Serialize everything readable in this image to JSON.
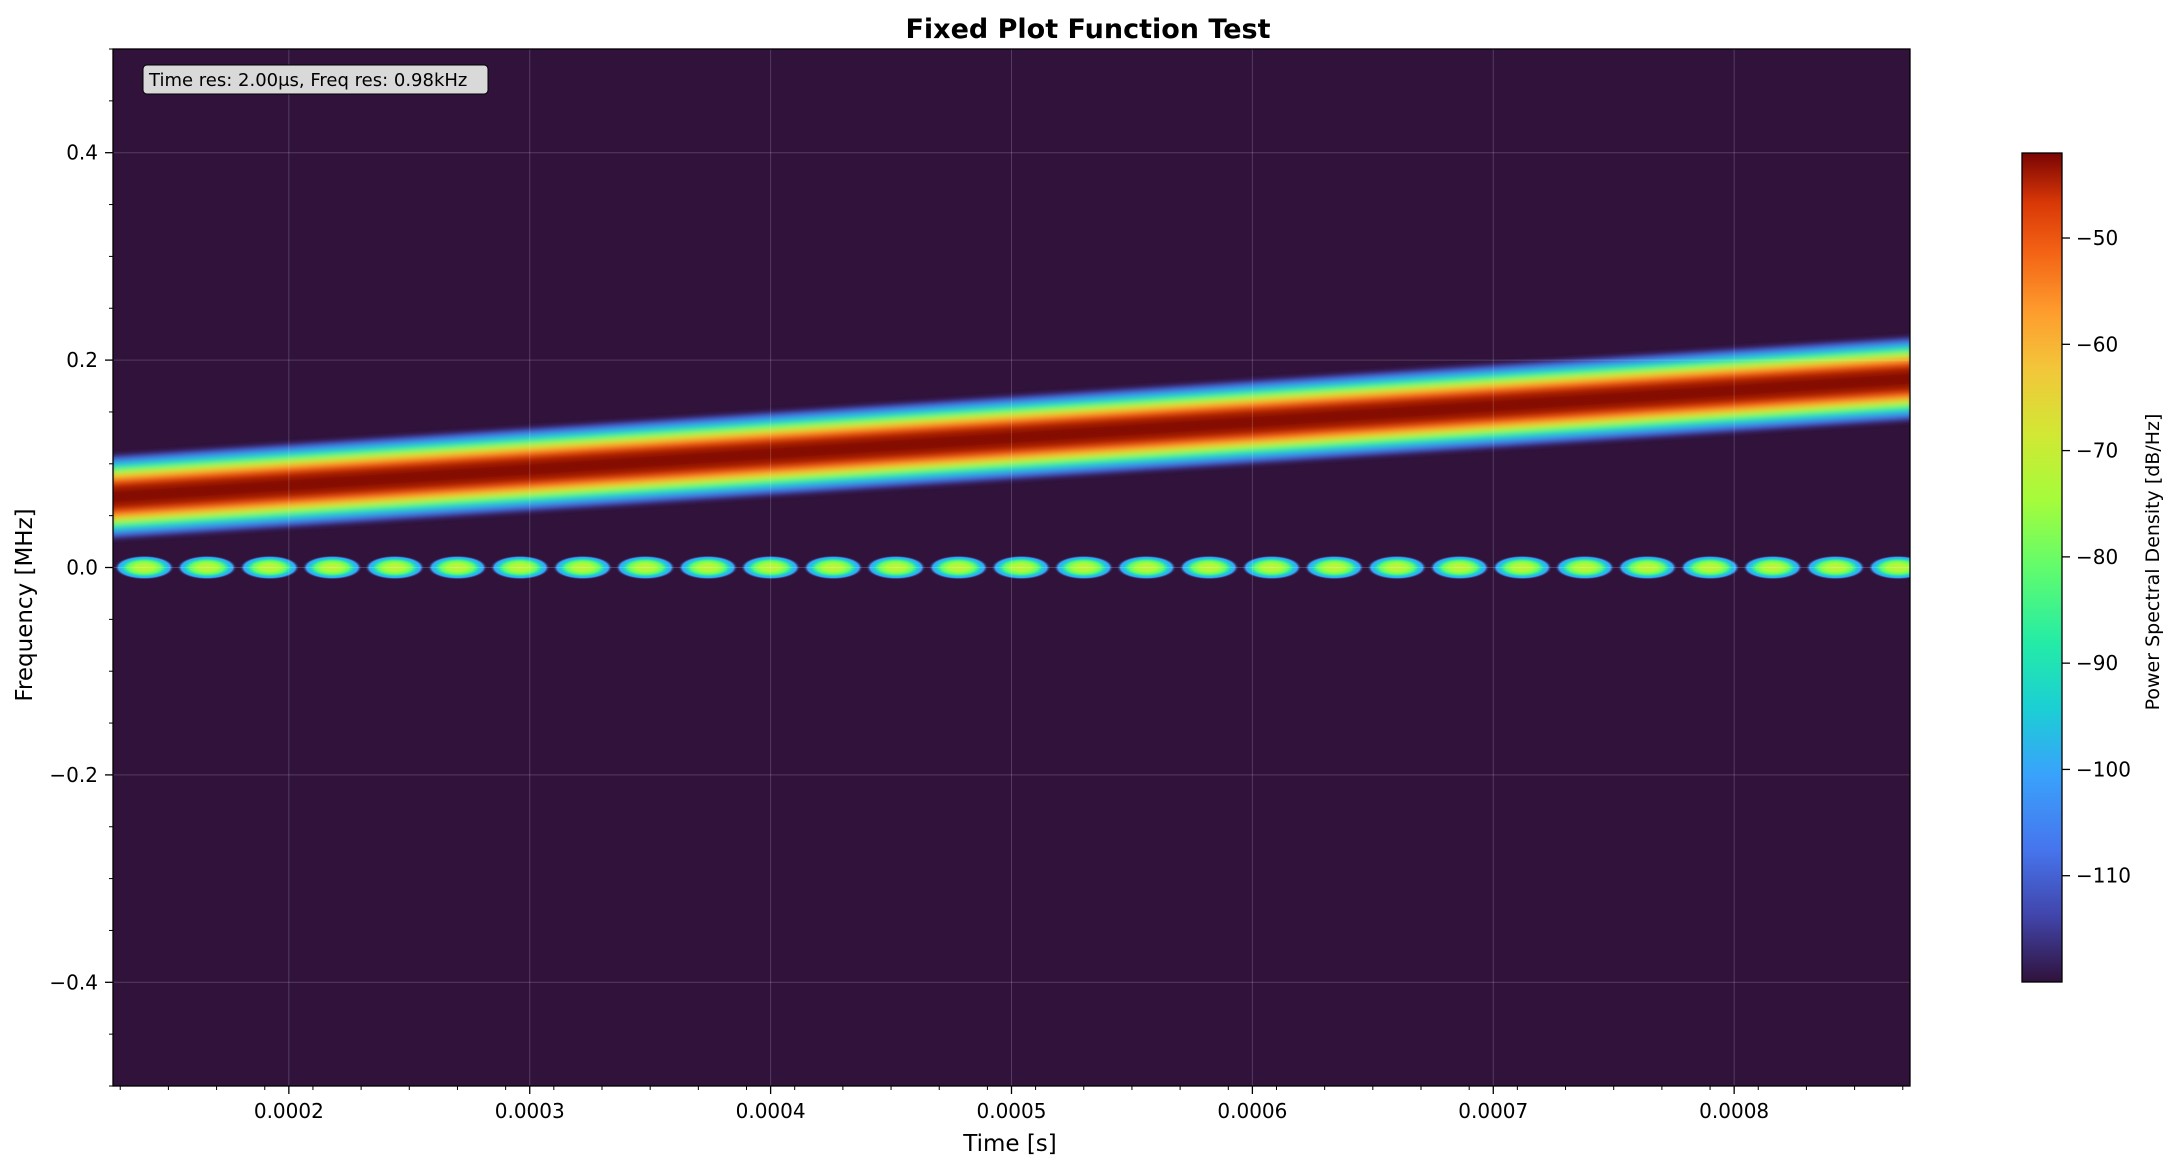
{
  "chart_data": {
    "type": "heatmap",
    "title": "Fixed Plot Function Test",
    "xlabel": "Time [s]",
    "ylabel": "Frequency [MHz]",
    "xlim": [
      0.000127,
      0.000873
    ],
    "ylim": [
      -0.5,
      0.5
    ],
    "x_ticks": [
      0.0002,
      0.0003,
      0.0004,
      0.0005,
      0.0006,
      0.0007,
      0.0008
    ],
    "x_tick_labels": [
      "0.0002",
      "0.0003",
      "0.0004",
      "0.0005",
      "0.0006",
      "0.0007",
      "0.0008"
    ],
    "y_ticks": [
      -0.4,
      -0.2,
      0.0,
      0.2,
      0.4
    ],
    "y_tick_labels": [
      "−0.4",
      "−0.2",
      "0.0",
      "0.2",
      "0.4"
    ],
    "grid": true,
    "annotation": "Time res: 2.00μs, Freq res: 0.98kHz",
    "background_level_db": -120,
    "series": [
      {
        "kind": "linear chirp band",
        "x": [
          0.000127,
          0.000873
        ],
        "center_freq_mhz": [
          0.068,
          0.182
        ],
        "peak_db": -42
      },
      {
        "kind": "pulsed tone at DC",
        "center_freq_mhz": 0.0,
        "pulse_period_s": 2.6e-05,
        "peak_db": -78
      }
    ],
    "colorbar": {
      "label": "Power Spectral Density [dB/Hz]",
      "range": [
        -120,
        -42
      ],
      "ticks": [
        -50,
        -60,
        -70,
        -80,
        -90,
        -100,
        -110
      ],
      "tick_labels": [
        "−50",
        "−60",
        "−70",
        "−80",
        "−90",
        "−100",
        "−110"
      ],
      "colormap": "turbo",
      "low_color": "#30123b",
      "high_color": "#7a0403"
    }
  }
}
